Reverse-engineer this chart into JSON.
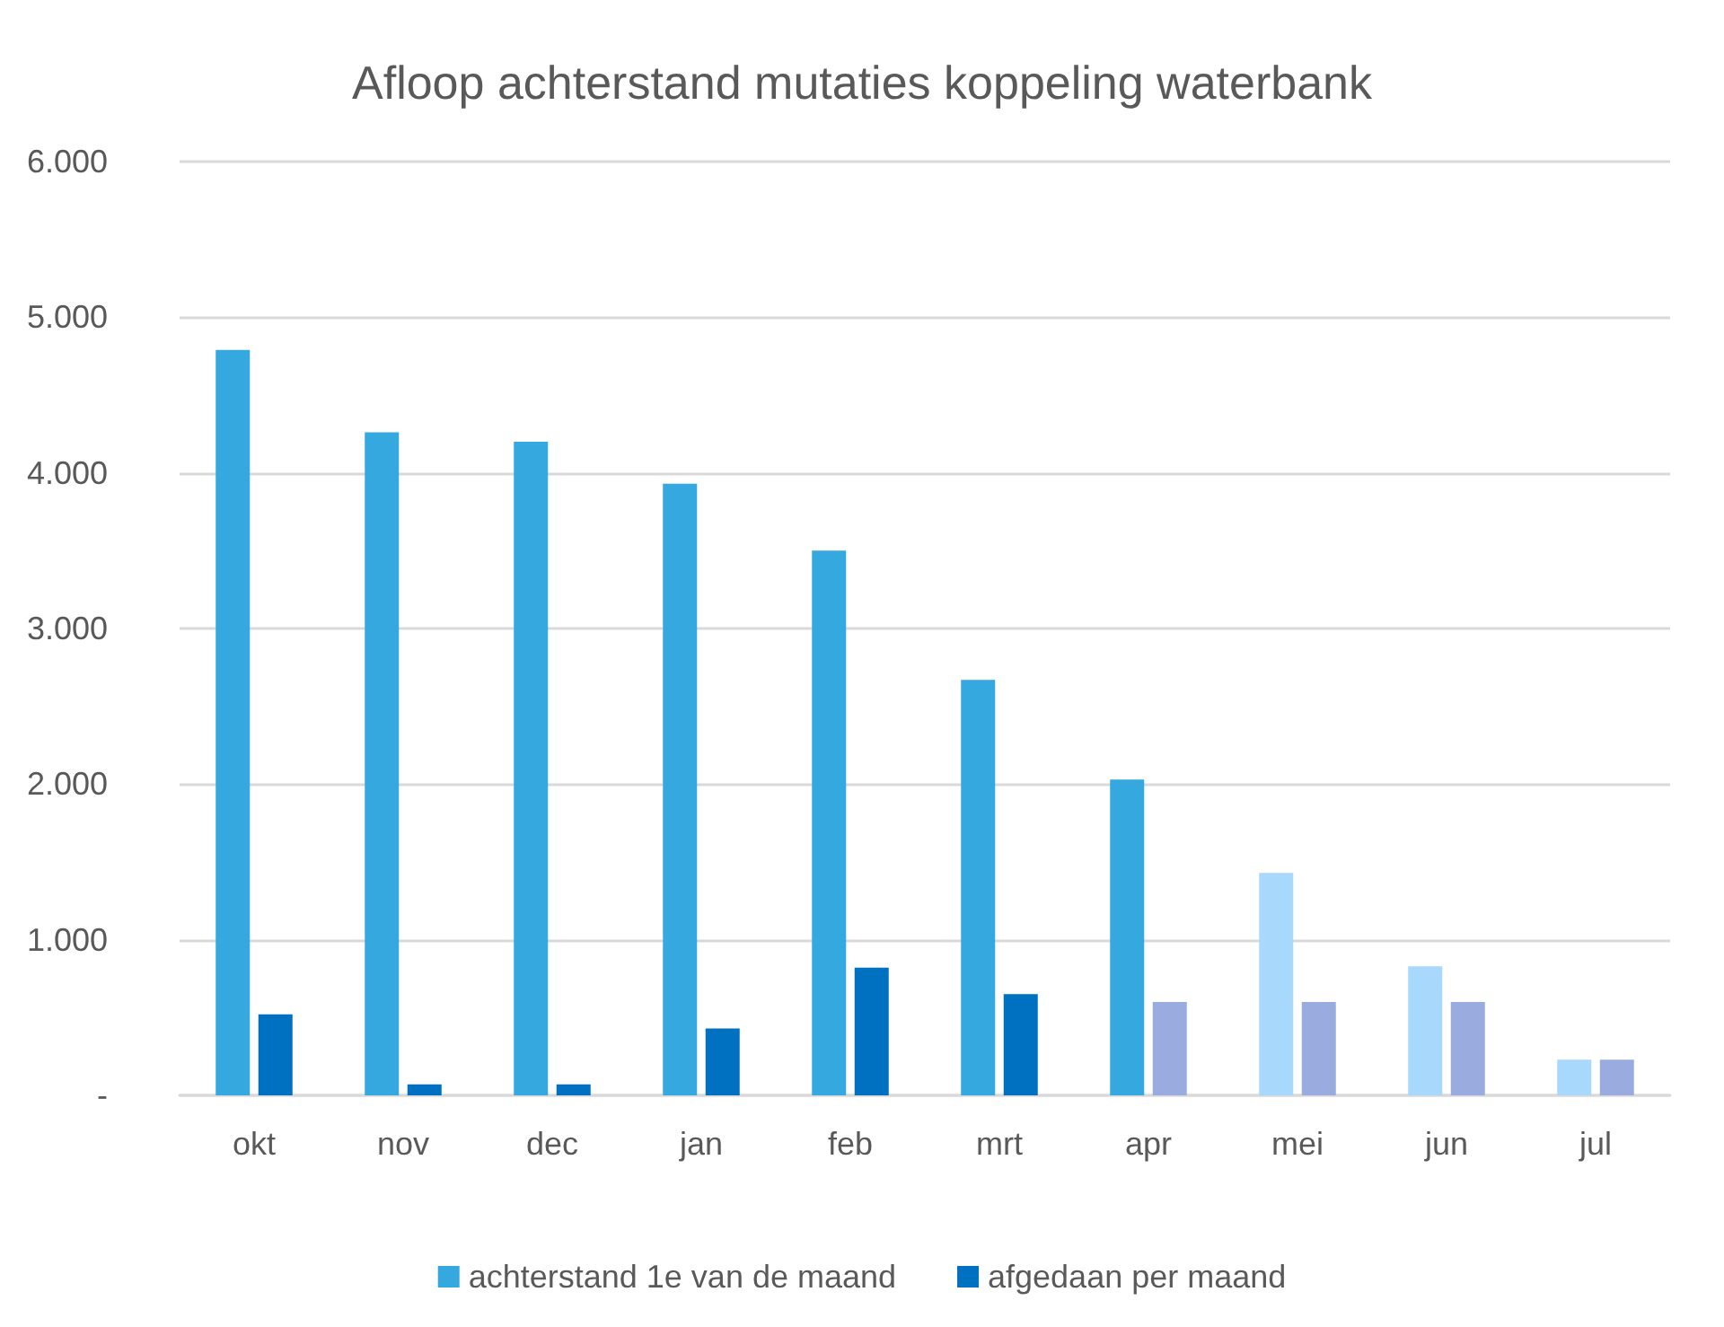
{
  "chart_data": {
    "type": "bar",
    "title": "Afloop achterstand mutaties koppeling waterbank",
    "categories": [
      "okt",
      "nov",
      "dec",
      "jan",
      "feb",
      "mrt",
      "apr",
      "mei",
      "jun",
      "jul"
    ],
    "series": [
      {
        "name": "achterstand 1e van de maand",
        "color": "#35a9df",
        "colors": [
          "#35a9df",
          "#35a9df",
          "#35a9df",
          "#35a9df",
          "#35a9df",
          "#35a9df",
          "#35a9df",
          "#a8d8fc",
          "#a8d8fc",
          "#a8d8fc"
        ],
        "values": [
          4790,
          4260,
          4200,
          3930,
          3500,
          2670,
          2030,
          1430,
          830,
          230
        ]
      },
      {
        "name": "afgedaan per maand",
        "color": "#0070c0",
        "colors": [
          "#0070c0",
          "#0070c0",
          "#0070c0",
          "#0070c0",
          "#0070c0",
          "#0070c0",
          "#9aabe0",
          "#9aabe0",
          "#9aabe0",
          "#9aabe0"
        ],
        "values": [
          520,
          70,
          70,
          430,
          820,
          650,
          600,
          600,
          600,
          230
        ]
      }
    ],
    "ylim": [
      0,
      6000
    ],
    "yticks": [
      {
        "value": 0,
        "label": "-"
      },
      {
        "value": 1000,
        "label": "1.000"
      },
      {
        "value": 2000,
        "label": "2.000"
      },
      {
        "value": 3000,
        "label": "3.000"
      },
      {
        "value": 4000,
        "label": "4.000"
      },
      {
        "value": 5000,
        "label": "5.000"
      },
      {
        "value": 6000,
        "label": "6.000"
      }
    ],
    "grid": "y",
    "legend": "bottom"
  }
}
